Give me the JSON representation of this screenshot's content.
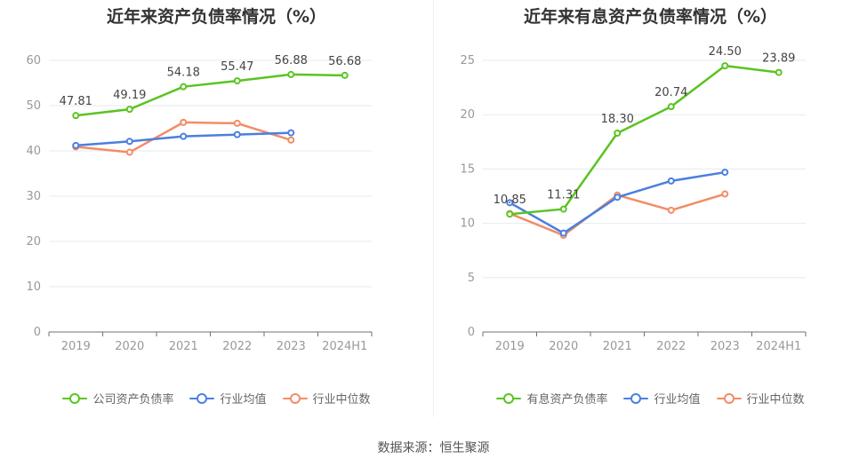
{
  "source_label": "数据来源：恒生聚源",
  "chart_data": [
    {
      "type": "line",
      "title": "近年来资产负债率情况（%）",
      "categories": [
        "2019",
        "2020",
        "2021",
        "2022",
        "2023",
        "2024H1"
      ],
      "ylim": [
        0,
        60
      ],
      "yticks": [
        0,
        10,
        20,
        30,
        40,
        50,
        60
      ],
      "grid": true,
      "legend_position": "bottom",
      "series": [
        {
          "name": "公司资产负债率",
          "color": "#5ac421",
          "values": [
            47.81,
            49.19,
            54.18,
            55.47,
            56.88,
            56.68
          ],
          "labels": [
            "47.81",
            "49.19",
            "54.18",
            "55.47",
            "56.88",
            "56.68"
          ]
        },
        {
          "name": "行业均值",
          "color": "#4a7fe0",
          "values": [
            41.2,
            42.1,
            43.2,
            43.6,
            44.0,
            null
          ],
          "labels": []
        },
        {
          "name": "行业中位数",
          "color": "#f28c66",
          "values": [
            40.9,
            39.7,
            46.3,
            46.1,
            42.4,
            null
          ],
          "labels": []
        }
      ]
    },
    {
      "type": "line",
      "title": "近年来有息资产负债率情况（%）",
      "categories": [
        "2019",
        "2020",
        "2021",
        "2022",
        "2023",
        "2024H1"
      ],
      "ylim": [
        0,
        25
      ],
      "yticks": [
        0,
        5,
        10,
        15,
        20,
        25
      ],
      "grid": true,
      "legend_position": "bottom",
      "series": [
        {
          "name": "有息资产负债率",
          "color": "#5ac421",
          "values": [
            10.85,
            11.31,
            18.3,
            20.74,
            24.5,
            23.89
          ],
          "labels": [
            "10.85",
            "11.31",
            "18.30",
            "20.74",
            "24.50",
            "23.89"
          ]
        },
        {
          "name": "行业均值",
          "color": "#4a7fe0",
          "values": [
            11.9,
            9.1,
            12.4,
            13.9,
            14.7,
            null
          ],
          "labels": []
        },
        {
          "name": "行业中位数",
          "color": "#f28c66",
          "values": [
            10.9,
            8.9,
            12.6,
            11.2,
            12.7,
            null
          ],
          "labels": []
        }
      ]
    }
  ]
}
